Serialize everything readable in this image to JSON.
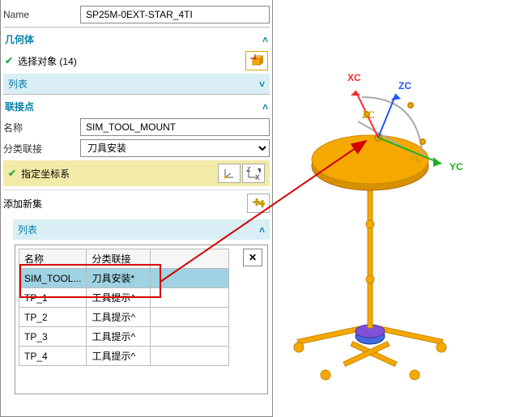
{
  "name_row": {
    "label": "Name",
    "value": "SP25M-0EXT-STAR_4TI"
  },
  "geometry": {
    "title": "几何体",
    "select_label": "选择对象 (14)",
    "list_label": "列表"
  },
  "mount": {
    "title": "联接点",
    "name_label": "名称",
    "name_value": "SIM_TOOL_MOUNT",
    "class_label": "分类联接",
    "class_value": "刀具安装",
    "class_options": [
      "刀具安装",
      "工具提示"
    ],
    "csys_label": "指定坐标系",
    "add_label": "添加新集",
    "list_label": "列表",
    "table": {
      "cols": [
        "名称",
        "分类联接"
      ],
      "rows": [
        {
          "c0": "SIM_TOOL...",
          "c1": "刀具安装*",
          "selected": true
        },
        {
          "c0": "TP_1",
          "c1": "工具提示^",
          "selected": false
        },
        {
          "c0": "TP_2",
          "c1": "工具提示^",
          "selected": false
        },
        {
          "c0": "TP_3",
          "c1": "工具提示^",
          "selected": false
        },
        {
          "c0": "TP_4",
          "c1": "工具提示^",
          "selected": false
        }
      ]
    }
  },
  "axes": {
    "xc": "XC",
    "yc": "YC",
    "zc": "ZC"
  },
  "colors": {
    "accent": "#0a82a5",
    "highlight_bg": "#f2eba7",
    "sub_bg": "#d9eef5",
    "select_bg": "#9fd3e3",
    "check": "#34a853",
    "red": "#d50000",
    "gold": "#f5a900",
    "gold_dark": "#c88700",
    "blue": "#4169e1",
    "purple": "#8050d8",
    "xc_color": "#ff2a2a",
    "yc_color": "#1db01d",
    "zc_color": "#2255ff"
  }
}
